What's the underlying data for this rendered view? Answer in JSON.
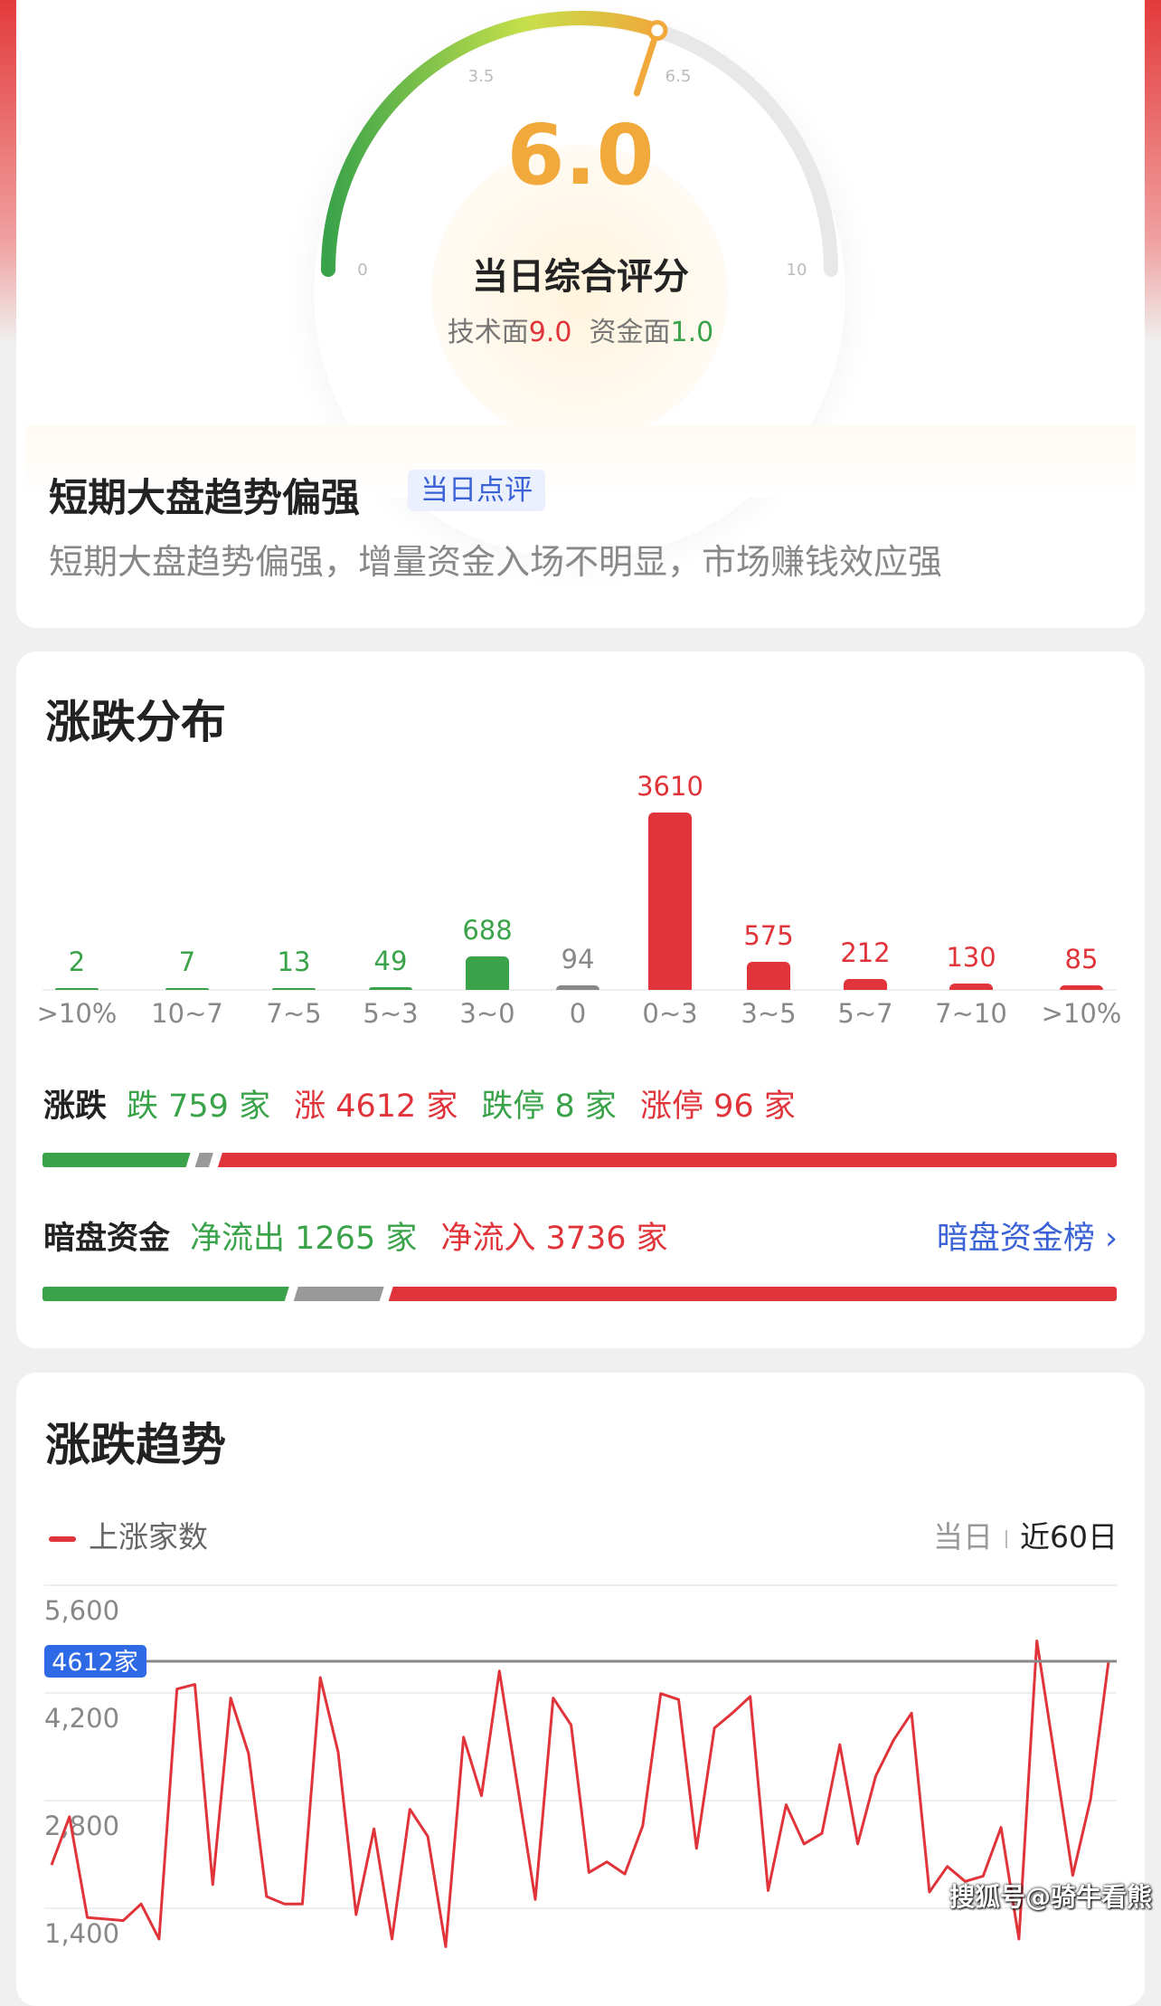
{
  "gauge": {
    "score": "6.0",
    "score_value": 6.0,
    "min": 0,
    "max": 10,
    "ticks": [
      "0",
      "3.5",
      "6.5",
      "10"
    ],
    "title": "当日综合评分",
    "tech_label": "技术面",
    "tech_value": "9.0",
    "fund_label": "资金面",
    "fund_value": "1.0"
  },
  "review": {
    "title": "短期大盘趋势偏强",
    "tag": "当日点评",
    "desc": "短期大盘趋势偏强，增量资金入场不明显，市场赚钱效应强"
  },
  "distribution": {
    "title": "涨跌分布",
    "chart_data": {
      "type": "bar",
      "categories": [
        ">10%",
        "10~7",
        "7~5",
        "5~3",
        "3~0",
        "0",
        "0~3",
        "3~5",
        "5~7",
        "7~10",
        ">10%"
      ],
      "values": [
        2,
        7,
        13,
        49,
        688,
        94,
        3610,
        575,
        212,
        130,
        85
      ],
      "colors": [
        "#3aa34a",
        "#3aa34a",
        "#3aa34a",
        "#3aa34a",
        "#3aa34a",
        "#888888",
        "#e0343a",
        "#e0343a",
        "#e0343a",
        "#e0343a",
        "#e0343a"
      ]
    },
    "updown": {
      "label": "涨跌",
      "fall": "跌 759 家",
      "rise": "涨 4612 家",
      "limit_down": "跌停 8 家",
      "limit_up": "涨停 96 家",
      "fall_n": 759,
      "flat_n": 94,
      "rise_n": 4612
    },
    "dark": {
      "label": "暗盘资金",
      "out": "净流出 1265 家",
      "in": "净流入 3736 家",
      "link": "暗盘资金榜",
      "out_n": 1265,
      "flat_n": 464,
      "in_n": 3736
    }
  },
  "trend": {
    "title": "涨跌趋势",
    "legend": "上涨家数",
    "range_options": [
      "当日",
      "近60日"
    ],
    "selected_range": "近60日",
    "current_label": "4612家",
    "chart_data": {
      "type": "line",
      "series": [
        {
          "name": "上涨家数",
          "color": "#e0343a",
          "values": [
            1964,
            2589,
            1280,
            1260,
            1240,
            1456,
            1000,
            4251,
            4310,
            1710,
            4134,
            3410,
            1553,
            1455,
            1455,
            4400,
            3430,
            1318,
            2433,
            1000,
            2687,
            2335,
            900,
            3625,
            2863,
            4486,
            3000,
            1514,
            4134,
            3782,
            1866,
            2003,
            1846,
            2472,
            4192,
            4114,
            2179,
            3743,
            3938,
            4153,
            1631,
            2746,
            2237,
            2374,
            3528,
            2237,
            3117,
            3586,
            3938,
            1612,
            1944,
            1749,
            1819,
            2452,
            1000,
            4877,
            3350,
            1827,
            2824,
            4612
          ]
        }
      ],
      "yticks": [
        "5,600",
        "4,200",
        "2,800",
        "1,400"
      ],
      "ytick_values": [
        5600,
        4200,
        2800,
        1400
      ],
      "reference_value": 4612,
      "grid": true
    }
  },
  "watermark": "搜狐号@骑牛看熊"
}
